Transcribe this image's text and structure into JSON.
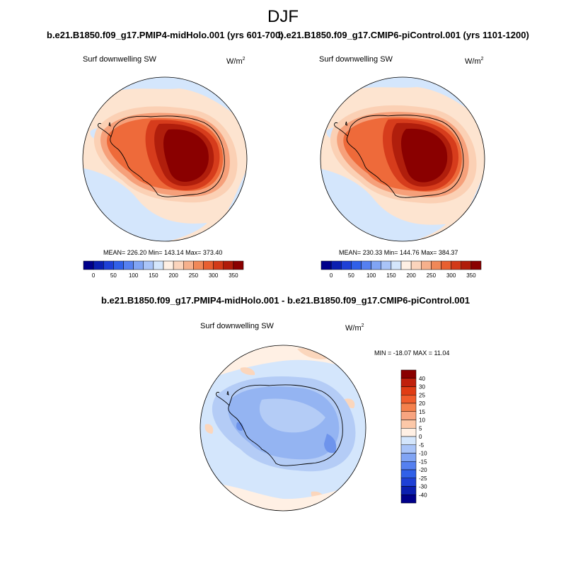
{
  "page": {
    "main_title": "DJF"
  },
  "panels": [
    {
      "title": "b.e21.B1850.f09_g17.PMIP4-midHolo.001 (yrs 601-700)",
      "field": "Surf downwelling SW",
      "units_base": "W/m",
      "units_exp": "2",
      "stats": "MEAN= 226.20  Min= 143.14  Max= 373.40"
    },
    {
      "title": "b.e21.B1850.f09_g17.CMIP6-piControl.001 (yrs 1101-1200)",
      "field": "Surf downwelling SW",
      "units_base": "W/m",
      "units_exp": "2",
      "stats": "MEAN= 230.33  Min= 144.76  Max= 384.37"
    },
    {
      "title": "b.e21.B1850.f09_g17.PMIP4-midHolo.001 - b.e21.B1850.f09_g17.CMIP6-piControl.001",
      "field": "Surf downwelling SW",
      "units_base": "W/m",
      "units_exp": "2",
      "stats": "MIN = -18.07 MAX =  11.04"
    }
  ],
  "colorbars": {
    "absolute": {
      "labels": [
        "0",
        "50",
        "100",
        "150",
        "200",
        "250",
        "300",
        "350"
      ],
      "colors": [
        "#00008a",
        "#0b1fb0",
        "#1e40d6",
        "#3060e8",
        "#5580f0",
        "#80a4f4",
        "#a9c4f8",
        "#d4e6fc",
        "#fff0e4",
        "#fbd4bc",
        "#f6b08c",
        "#f08858",
        "#e85f30",
        "#d23a18",
        "#b01c0a",
        "#8a0000"
      ]
    },
    "difference": {
      "labels": [
        "40",
        "30",
        "25",
        "20",
        "15",
        "10",
        "5",
        "0",
        "-5",
        "-10",
        "-15",
        "-20",
        "-25",
        "-30",
        "-40"
      ],
      "colors": [
        "#8a0000",
        "#c0200c",
        "#e03c14",
        "#f05c2c",
        "#f4804c",
        "#f8a480",
        "#fcc8a8",
        "#fff0e4",
        "#d4e6fc",
        "#a9c4f8",
        "#80a4f4",
        "#5580f0",
        "#3060e8",
        "#1e40d6",
        "#0b1fb0",
        "#00008a"
      ]
    }
  },
  "map_colors": {
    "ocean_pale_blue": "#d4e6fc",
    "ocean_peach": "#fde4d0",
    "band_light": "#fbd0b4",
    "band_mid": "#f6a07a",
    "band_orange": "#ee6a3a",
    "band_red": "#d63c1c",
    "band_dark": "#b01e0c",
    "core": "#8a0000",
    "diff_blue_1": "#d4e6fc",
    "diff_blue_2": "#b4ccf6",
    "diff_blue_3": "#94b4f2",
    "diff_blue_4": "#6e94ec",
    "diff_peach": "#fbd6bc",
    "diff_cream": "#fff0e4"
  }
}
